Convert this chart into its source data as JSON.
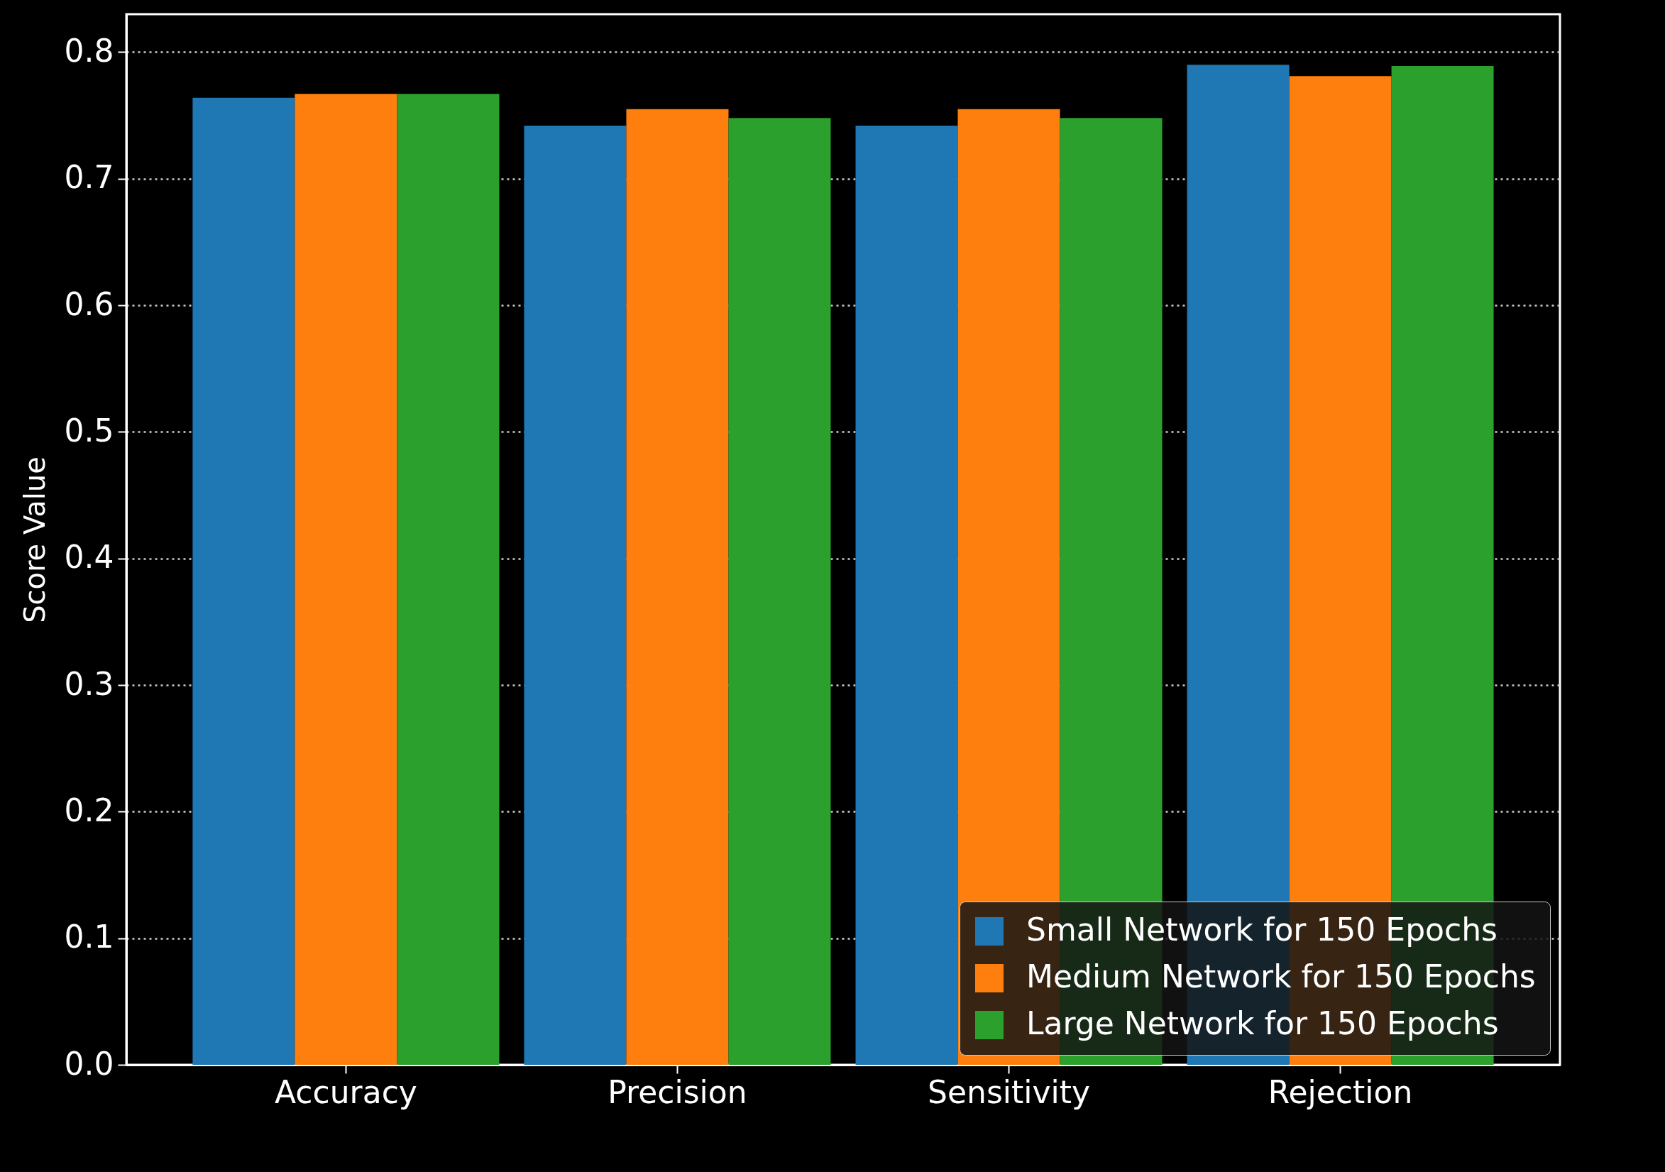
{
  "chart_data": {
    "type": "bar",
    "ylabel": "Score Value",
    "categories": [
      "Accuracy",
      "Precision",
      "Sensitivity",
      "Rejection"
    ],
    "series": [
      {
        "name": "Small Network for 150 Epochs",
        "color": "#1f77b4",
        "values": [
          0.764,
          0.742,
          0.742,
          0.79
        ]
      },
      {
        "name": "Medium Network for 150 Epochs",
        "color": "#ff7f0e",
        "values": [
          0.767,
          0.755,
          0.755,
          0.781
        ]
      },
      {
        "name": "Large Network for 150 Epochs",
        "color": "#2ca02c",
        "values": [
          0.767,
          0.748,
          0.748,
          0.789
        ]
      }
    ],
    "ylim": [
      0,
      0.83
    ],
    "yticks": [
      {
        "value": 0,
        "label": "0.0"
      },
      0.1,
      0.2,
      0.3,
      0.4,
      0.5,
      0.6,
      0.7,
      0.8
    ],
    "grid": "y",
    "legend": "bottom right"
  }
}
